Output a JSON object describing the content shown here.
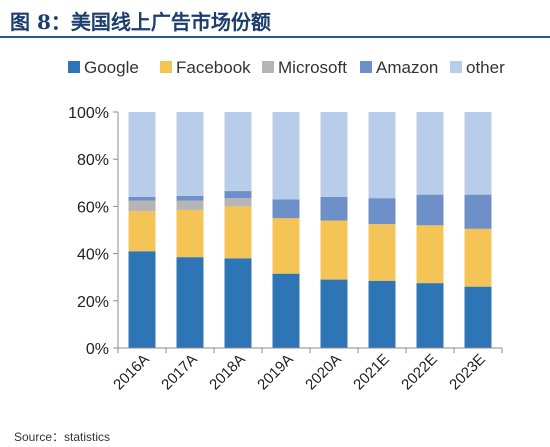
{
  "figure": {
    "title": "图 8：美国线上广告市场份额",
    "source": "Source：statistics"
  },
  "chart_data": {
    "type": "bar",
    "stacked": true,
    "categories": [
      "2016A",
      "2017A",
      "2018A",
      "2019A",
      "2020A",
      "2021E",
      "2022E",
      "2023E"
    ],
    "series": [
      {
        "name": "Google",
        "color": "#2e75b6",
        "values": [
          41,
          38.5,
          38,
          31.5,
          29,
          28.5,
          27.5,
          26
        ]
      },
      {
        "name": "Facebook",
        "color": "#f5c456",
        "values": [
          17,
          20,
          22,
          23.5,
          25,
          24,
          24.5,
          24.5
        ]
      },
      {
        "name": "Microsoft",
        "color": "#b5b5b5",
        "values": [
          4.5,
          4,
          3.5,
          0,
          0,
          0,
          0,
          0
        ]
      },
      {
        "name": "Amazon",
        "color": "#6f8fc8",
        "values": [
          1.5,
          2,
          3,
          8,
          10,
          11,
          13,
          14.5
        ]
      },
      {
        "name": "other",
        "color": "#b8cde9",
        "values": [
          36,
          35.5,
          33.5,
          37,
          36,
          36.5,
          35,
          35
        ]
      }
    ],
    "ylim": [
      0,
      100
    ],
    "yticks": [
      "0%",
      "20%",
      "40%",
      "60%",
      "80%",
      "100%"
    ],
    "legend_position": "top",
    "grid": false
  }
}
